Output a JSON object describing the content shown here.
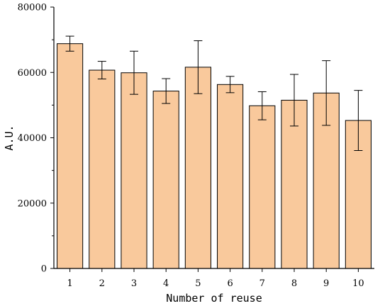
{
  "chart_data": {
    "type": "bar",
    "categories": [
      "1",
      "2",
      "3",
      "4",
      "5",
      "6",
      "7",
      "8",
      "9",
      "10"
    ],
    "values": [
      68800,
      60700,
      59900,
      54300,
      61600,
      56300,
      49800,
      51500,
      53700,
      45300
    ],
    "errors": [
      2300,
      2700,
      6600,
      3800,
      8100,
      2500,
      4300,
      7900,
      9900,
      9200
    ],
    "xlabel": "Number of reuse",
    "ylabel": "A.U.",
    "ylim": [
      0,
      80000
    ],
    "yticks": [
      "0",
      "20000",
      "40000",
      "60000",
      "80000"
    ],
    "ytick_values": [
      0,
      20000,
      40000,
      60000,
      80000
    ],
    "grid": false,
    "bar_color": "#f9c99c",
    "bar_edge_color": "#000000"
  }
}
